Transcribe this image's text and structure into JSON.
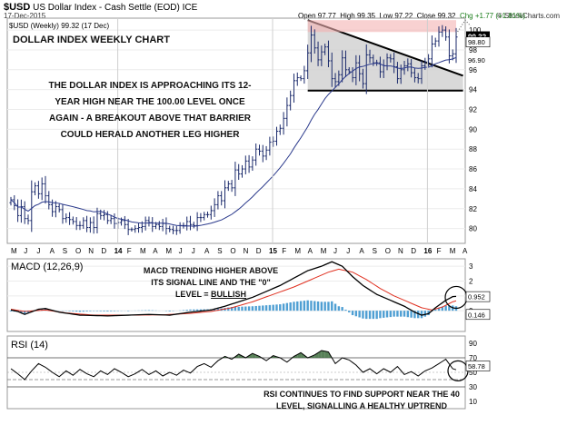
{
  "header": {
    "symbol": "$USD",
    "name": "US Dollar Index - Cash Settle (EOD)",
    "exchange": "ICE",
    "date": "17-Dec-2015",
    "brand": "© StockCharts.com",
    "ohlc": {
      "open": "Open 97.77",
      "high": "High 99.35",
      "low": "Low 97.22",
      "close": "Close 99.32",
      "chg": "Chg +1.77 (+1.81%)"
    },
    "legend": "$USD (Weekly) 99.32 (17 Dec)"
  },
  "annotations": {
    "chart_title": "DOLLAR INDEX WEEKLY CHART",
    "main_note_lines": [
      "THE DOLLAR INDEX IS APPROACHING ITS 12-",
      "YEAR HIGH NEAR THE 100.00 LEVEL ONCE",
      "AGAIN - A BREAKOUT ABOVE THAT BARRIER",
      "COULD HERALD ANOTHER LEG HIGHER"
    ],
    "macd_note_lines": [
      "MACD TRENDING HIGHER ABOVE",
      "ITS SIGNAL LINE AND THE \"0\""
    ],
    "macd_note_last_prefix": "LEVEL = ",
    "macd_note_last_emph": "BULLISH",
    "rsi_note_lines": [
      "RSI CONTINUES TO FIND SUPPORT NEAR THE 40",
      "LEVEL, SIGNALLING A HEALTHY UPTREND"
    ]
  },
  "colors": {
    "bar": "#1b2a6b",
    "ma": "#2b3a8c",
    "macd": "#000000",
    "signal": "#e03020",
    "hist": "#4f9fd3",
    "rsi_fill": "#3b6b3b",
    "triangle": "#d0d0d0",
    "price_label": "#ffffff"
  },
  "chart_data": [
    {
      "type": "ohlc",
      "panel": "price",
      "x_ticks": [
        "M",
        "J",
        "J",
        "A",
        "S",
        "O",
        "N",
        "D",
        "14",
        "F",
        "M",
        "A",
        "M",
        "J",
        "J",
        "A",
        "S",
        "O",
        "N",
        "D",
        "15",
        "F",
        "M",
        "A",
        "M",
        "J",
        "J",
        "A",
        "S",
        "O",
        "N",
        "D",
        "16",
        "F",
        "M",
        "A"
      ],
      "y_ticks": [
        80,
        82,
        84,
        86,
        88,
        90,
        92,
        94,
        96,
        98,
        100
      ],
      "ylim": [
        78.5,
        101.2
      ],
      "closes": [
        82.9,
        82.3,
        81.3,
        82.2,
        81.0,
        80.8,
        83.7,
        84.3,
        83.5,
        84.5,
        83.3,
        82.4,
        81.7,
        82.2,
        81.9,
        81.0,
        81.1,
        80.9,
        80.7,
        80.3,
        80.3,
        80.8,
        80.1,
        80.6,
        80.1,
        81.5,
        81.3,
        81.4,
        80.8,
        81.0,
        80.5,
        80.6,
        80.8,
        80.4,
        79.9,
        79.9,
        80.0,
        80.1,
        80.2,
        80.8,
        80.6,
        80.2,
        80.4,
        80.2,
        80.5,
        80.0,
        79.9,
        79.8,
        79.8,
        80.3,
        80.3,
        80.7,
        80.4,
        80.3,
        81.1,
        81.1,
        81.4,
        81.4,
        81.8,
        82.4,
        83.3,
        82.8,
        84.1,
        84.5,
        84.1,
        85.9,
        85.5,
        86.0,
        86.8,
        86.2,
        86.9,
        88.0,
        87.8,
        87.3,
        87.9,
        88.7,
        88.8,
        89.8,
        90.1,
        91.1,
        92.4,
        93.4,
        94.9,
        95.2,
        95.1,
        95.9,
        97.7,
        99.5,
        98.2,
        97.0,
        97.8,
        98.3,
        96.9,
        95.1,
        94.8,
        95.5,
        97.2,
        96.0,
        95.8,
        95.2,
        96.7,
        95.6,
        94.6,
        97.5,
        97.2,
        96.7,
        96.7,
        95.8,
        96.4,
        97.2,
        97.1,
        96.3,
        95.1,
        96.0,
        96.4,
        96.6,
        95.7,
        95.2,
        95.1,
        96.4,
        96.8,
        97.1,
        98.6,
        98.9,
        99.8,
        100.0,
        99.3,
        97.4,
        97.6,
        99.3
      ],
      "moving_average": {
        "start": 81.4,
        "low": 80.3,
        "end": 97.2
      },
      "triangle": {
        "top_left": 101.0,
        "top_right": 95.4,
        "bottom": 93.9
      },
      "last_value_label": "99.32",
      "price_labels": [
        "98.80",
        "96.90"
      ]
    },
    {
      "type": "line+histogram",
      "panel": "macd",
      "title": "MACD (12,26,9)",
      "y_ticks": [
        3,
        2,
        1,
        0
      ],
      "ylim": [
        -1.4,
        3.5
      ],
      "value_labels": [
        "0.952",
        "0.146"
      ],
      "series": [
        {
          "name": "macd",
          "anchors": [
            [
              0,
              0.05
            ],
            [
              2,
              -0.05
            ],
            [
              4,
              -0.25
            ],
            [
              8,
              0.1
            ],
            [
              10,
              0.15
            ],
            [
              14,
              -0.1
            ],
            [
              20,
              -0.3
            ],
            [
              28,
              -0.35
            ],
            [
              34,
              -0.3
            ],
            [
              40,
              -0.25
            ],
            [
              46,
              -0.3
            ],
            [
              52,
              -0.1
            ],
            [
              58,
              0.05
            ],
            [
              62,
              0.3
            ],
            [
              66,
              0.6
            ],
            [
              70,
              0.9
            ],
            [
              74,
              1.3
            ],
            [
              78,
              1.7
            ],
            [
              82,
              2.2
            ],
            [
              86,
              2.7
            ],
            [
              90,
              3.0
            ],
            [
              93,
              3.3
            ],
            [
              96,
              3.0
            ],
            [
              99,
              2.3
            ],
            [
              102,
              1.7
            ],
            [
              106,
              1.1
            ],
            [
              110,
              0.7
            ],
            [
              114,
              0.3
            ],
            [
              117,
              -0.1
            ],
            [
              119,
              -0.3
            ],
            [
              121,
              -0.2
            ],
            [
              123,
              0.2
            ],
            [
              126,
              0.7
            ],
            [
              128,
              0.95
            ],
            [
              131,
              1.0
            ]
          ]
        },
        {
          "name": "signal",
          "anchors": [
            [
              0,
              0.1
            ],
            [
              4,
              -0.05
            ],
            [
              10,
              0.05
            ],
            [
              16,
              -0.15
            ],
            [
              24,
              -0.3
            ],
            [
              34,
              -0.3
            ],
            [
              44,
              -0.28
            ],
            [
              52,
              -0.18
            ],
            [
              58,
              -0.05
            ],
            [
              64,
              0.2
            ],
            [
              70,
              0.6
            ],
            [
              76,
              1.1
            ],
            [
              82,
              1.6
            ],
            [
              88,
              2.2
            ],
            [
              92,
              2.6
            ],
            [
              95,
              2.8
            ],
            [
              99,
              2.6
            ],
            [
              103,
              2.1
            ],
            [
              107,
              1.5
            ],
            [
              111,
              1.0
            ],
            [
              115,
              0.6
            ],
            [
              119,
              0.2
            ],
            [
              122,
              0.05
            ],
            [
              125,
              0.25
            ],
            [
              128,
              0.6
            ],
            [
              131,
              0.8
            ]
          ]
        }
      ]
    },
    {
      "type": "line",
      "panel": "rsi",
      "title": "RSI (14)",
      "y_ticks": [
        90,
        70,
        50,
        30,
        10
      ],
      "ylim": [
        0,
        100
      ],
      "threshold_lines": [
        70,
        30
      ],
      "value_label": "58.78",
      "series": [
        {
          "name": "rsi",
          "anchors": [
            [
              0,
              55
            ],
            [
              2,
              48
            ],
            [
              4,
              40
            ],
            [
              6,
              52
            ],
            [
              8,
              62
            ],
            [
              10,
              57
            ],
            [
              12,
              50
            ],
            [
              14,
              44
            ],
            [
              16,
              52
            ],
            [
              18,
              46
            ],
            [
              20,
              54
            ],
            [
              22,
              48
            ],
            [
              24,
              44
            ],
            [
              26,
              52
            ],
            [
              28,
              47
            ],
            [
              30,
              55
            ],
            [
              32,
              50
            ],
            [
              34,
              44
            ],
            [
              36,
              48
            ],
            [
              38,
              54
            ],
            [
              40,
              47
            ],
            [
              42,
              52
            ],
            [
              44,
              45
            ],
            [
              46,
              50
            ],
            [
              48,
              46
            ],
            [
              50,
              53
            ],
            [
              52,
              49
            ],
            [
              54,
              58
            ],
            [
              56,
              62
            ],
            [
              58,
              57
            ],
            [
              60,
              66
            ],
            [
              62,
              72
            ],
            [
              64,
              68
            ],
            [
              66,
              75
            ],
            [
              68,
              70
            ],
            [
              70,
              76
            ],
            [
              72,
              72
            ],
            [
              74,
              66
            ],
            [
              76,
              73
            ],
            [
              78,
              70
            ],
            [
              80,
              64
            ],
            [
              82,
              72
            ],
            [
              84,
              77
            ],
            [
              86,
              70
            ],
            [
              88,
              74
            ],
            [
              90,
              80
            ],
            [
              92,
              78
            ],
            [
              94,
              62
            ],
            [
              96,
              70
            ],
            [
              98,
              67
            ],
            [
              100,
              60
            ],
            [
              102,
              50
            ],
            [
              104,
              55
            ],
            [
              106,
              48
            ],
            [
              108,
              55
            ],
            [
              110,
              50
            ],
            [
              112,
              58
            ],
            [
              114,
              47
            ],
            [
              116,
              51
            ],
            [
              118,
              45
            ],
            [
              120,
              52
            ],
            [
              122,
              56
            ],
            [
              124,
              62
            ],
            [
              126,
              68
            ],
            [
              128,
              55
            ],
            [
              130,
              52
            ],
            [
              131,
              59
            ]
          ]
        }
      ]
    }
  ]
}
